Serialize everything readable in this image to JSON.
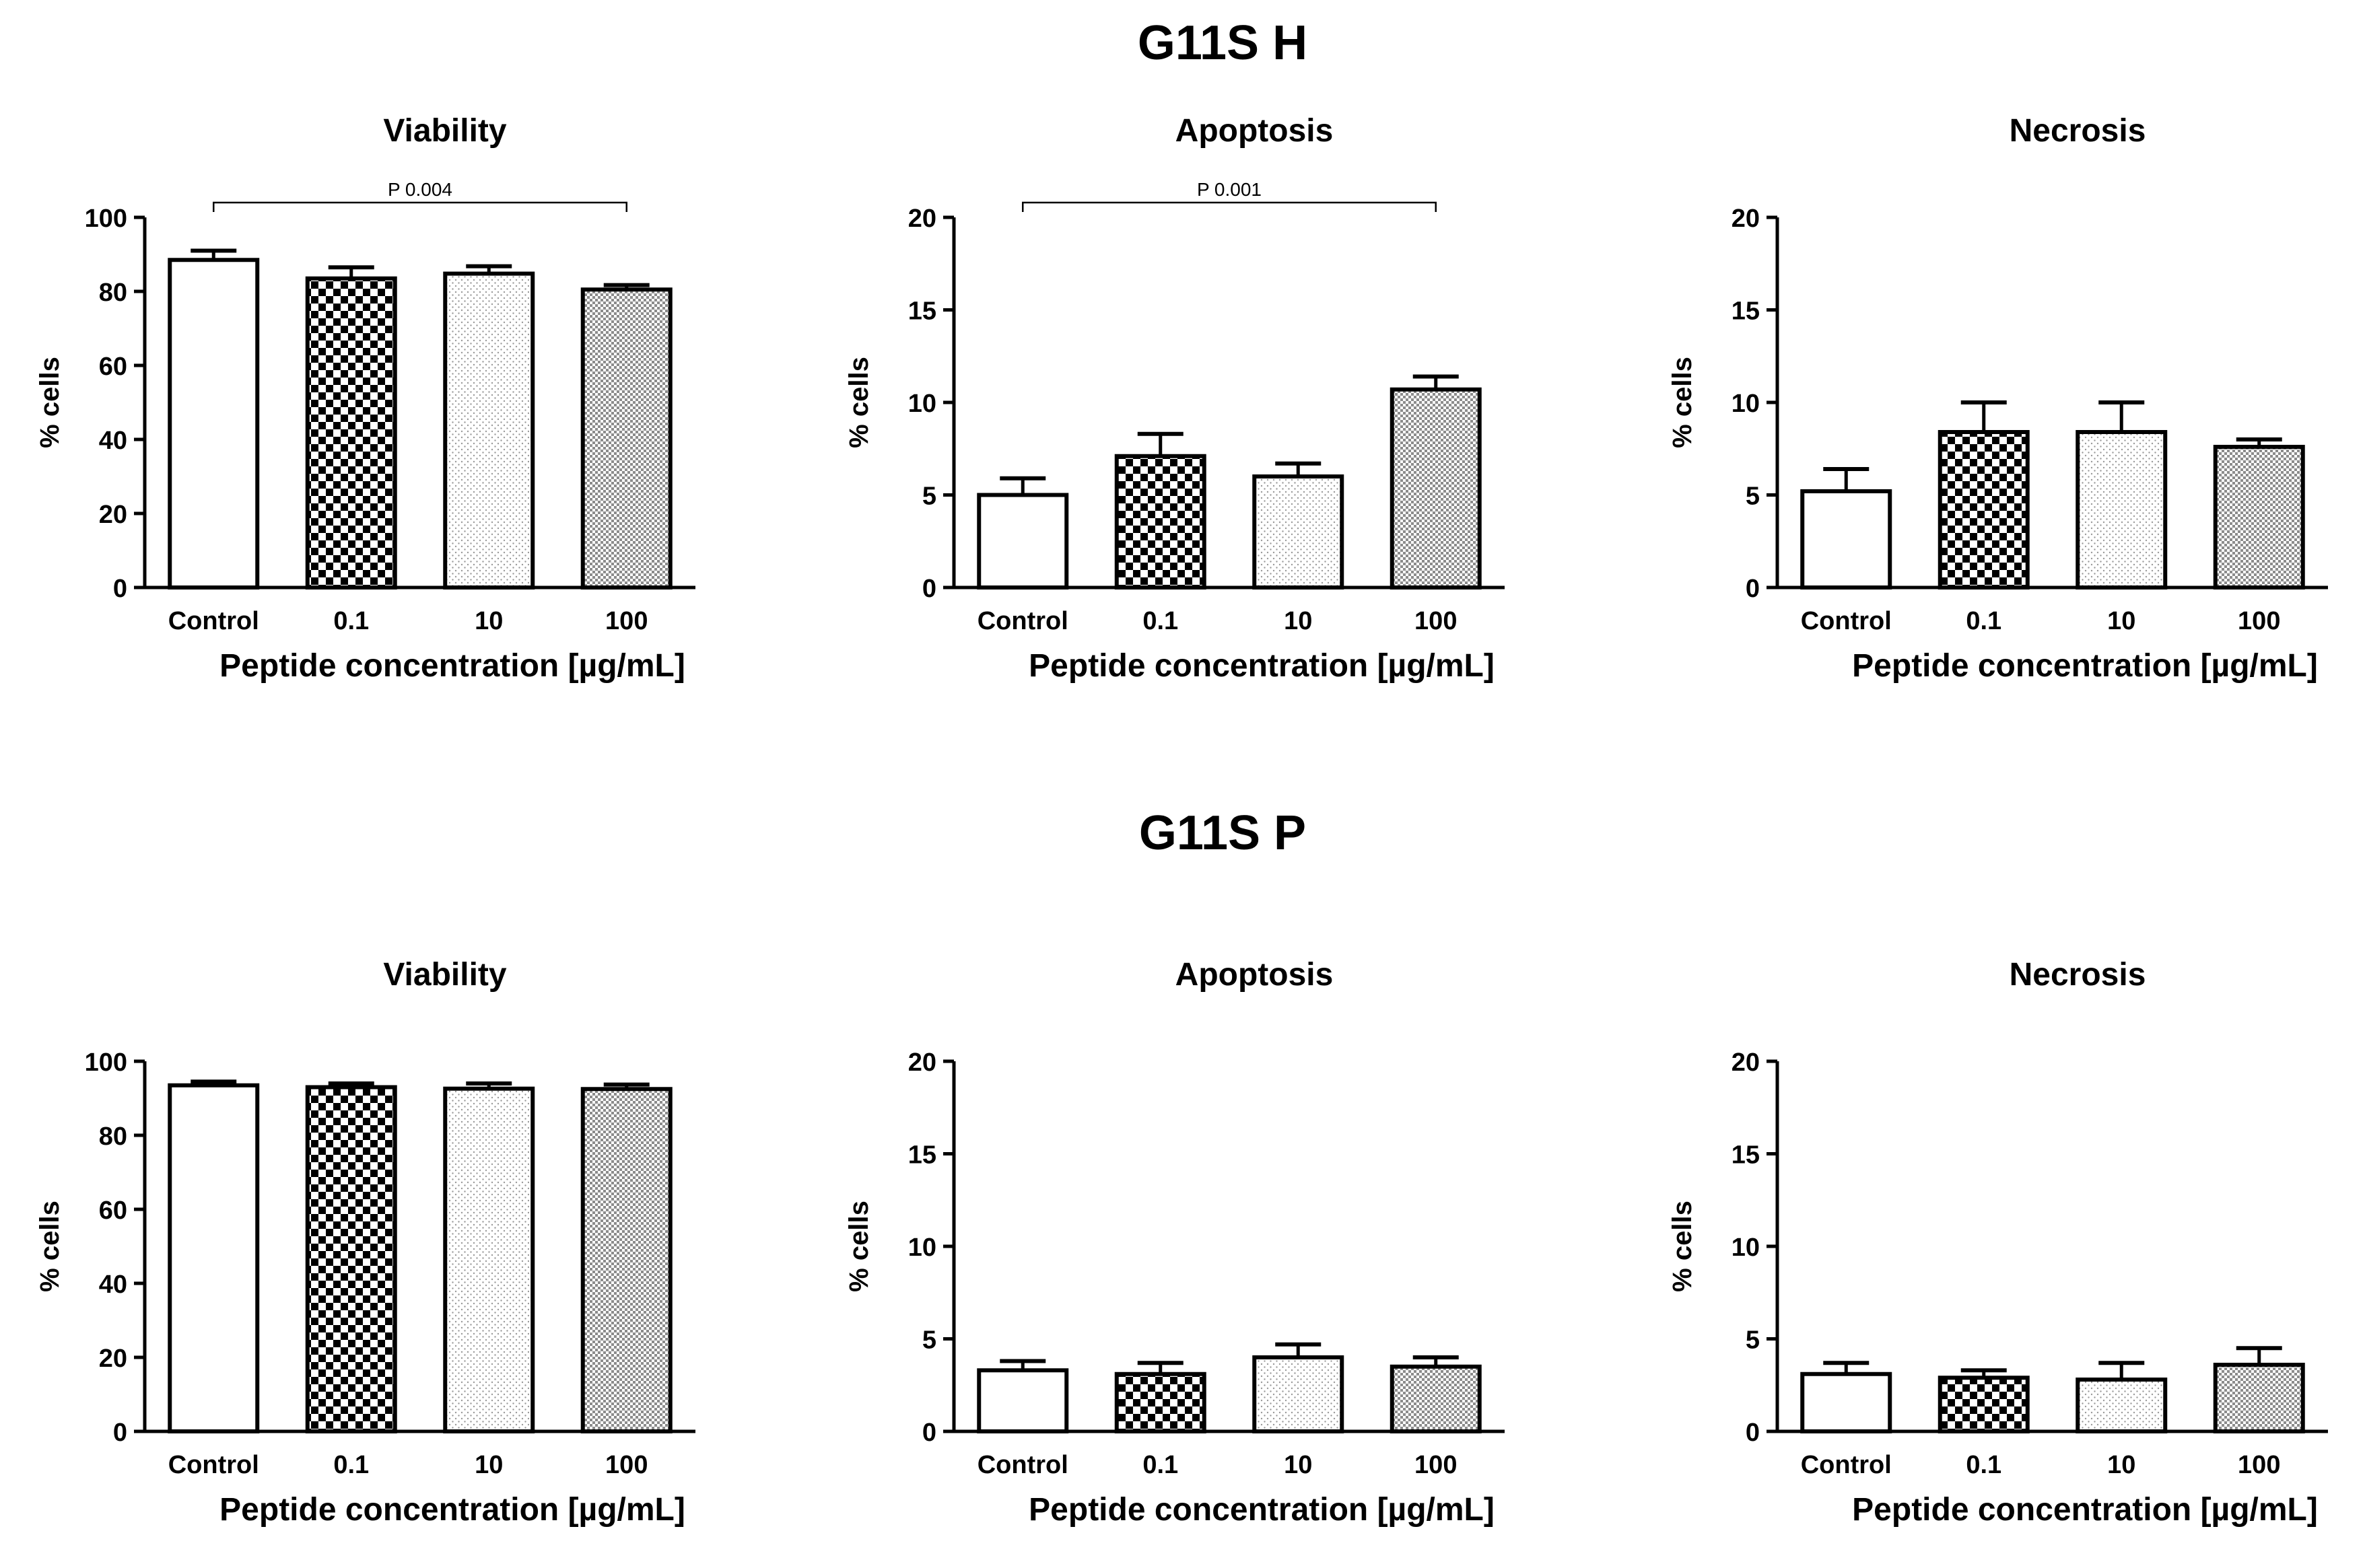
{
  "groups": [
    {
      "title": "G11S H"
    },
    {
      "title": "G11S P"
    }
  ],
  "patterns": [
    "open",
    "checker",
    "dots",
    "fine-grid"
  ],
  "chart_data": [
    {
      "group": "G11S H",
      "type": "bar",
      "title": "Viability",
      "categories": [
        "Control",
        "0.1",
        "10",
        "100"
      ],
      "values": [
        88.5,
        83.5,
        84.8,
        80.5
      ],
      "errors": [
        2.5,
        3.0,
        2.0,
        1.2
      ],
      "xlabel": "Peptide concentration [µg/mL]",
      "ylabel": "% cells",
      "ylim": [
        0,
        100
      ],
      "yticks": [
        "0",
        "20",
        "40",
        "60",
        "80",
        "100"
      ],
      "annotation": {
        "text": "P 0.004",
        "from": "Control",
        "to": "100"
      }
    },
    {
      "group": "G11S H",
      "type": "bar",
      "title": "Apoptosis",
      "categories": [
        "Control",
        "0.1",
        "10",
        "100"
      ],
      "values": [
        5.0,
        7.1,
        6.0,
        10.7
      ],
      "errors": [
        0.9,
        1.2,
        0.7,
        0.7
      ],
      "xlabel": "Peptide concentration [µg/mL]",
      "ylabel": "% cells",
      "ylim": [
        0,
        20
      ],
      "yticks": [
        "0",
        "5",
        "10",
        "15",
        "20"
      ],
      "annotation": {
        "text": "P 0.001",
        "from": "Control",
        "to": "100"
      }
    },
    {
      "group": "G11S H",
      "type": "bar",
      "title": "Necrosis",
      "categories": [
        "Control",
        "0.1",
        "10",
        "100"
      ],
      "values": [
        5.2,
        8.4,
        8.4,
        7.6
      ],
      "errors": [
        1.2,
        1.6,
        1.6,
        0.4
      ],
      "xlabel": "Peptide concentration [µg/mL]",
      "ylabel": "% cells",
      "ylim": [
        0,
        20
      ],
      "yticks": [
        "0",
        "5",
        "10",
        "15",
        "20"
      ],
      "annotation": null
    },
    {
      "group": "G11S P",
      "type": "bar",
      "title": "Viability",
      "categories": [
        "Control",
        "0.1",
        "10",
        "100"
      ],
      "values": [
        93.5,
        93.0,
        92.6,
        92.5
      ],
      "errors": [
        1.0,
        1.0,
        1.4,
        1.2
      ],
      "xlabel": "Peptide concentration [µg/mL]",
      "ylabel": "% cells",
      "ylim": [
        0,
        100
      ],
      "yticks": [
        "0",
        "20",
        "40",
        "60",
        "80",
        "100"
      ],
      "annotation": null
    },
    {
      "group": "G11S P",
      "type": "bar",
      "title": "Apoptosis",
      "categories": [
        "Control",
        "0.1",
        "10",
        "100"
      ],
      "values": [
        3.3,
        3.1,
        4.0,
        3.5
      ],
      "errors": [
        0.5,
        0.6,
        0.7,
        0.5
      ],
      "xlabel": "Peptide concentration [µg/mL]",
      "ylabel": "% cells",
      "ylim": [
        0,
        20
      ],
      "yticks": [
        "0",
        "5",
        "10",
        "15",
        "20"
      ],
      "annotation": null
    },
    {
      "group": "G11S P",
      "type": "bar",
      "title": "Necrosis",
      "categories": [
        "Control",
        "0.1",
        "10",
        "100"
      ],
      "values": [
        3.1,
        2.9,
        2.8,
        3.6
      ],
      "errors": [
        0.6,
        0.4,
        0.9,
        0.9
      ],
      "xlabel": "Peptide concentration [µg/mL]",
      "ylabel": "% cells",
      "ylim": [
        0,
        20
      ],
      "yticks": [
        "0",
        "5",
        "10",
        "15",
        "20"
      ],
      "annotation": null
    }
  ]
}
